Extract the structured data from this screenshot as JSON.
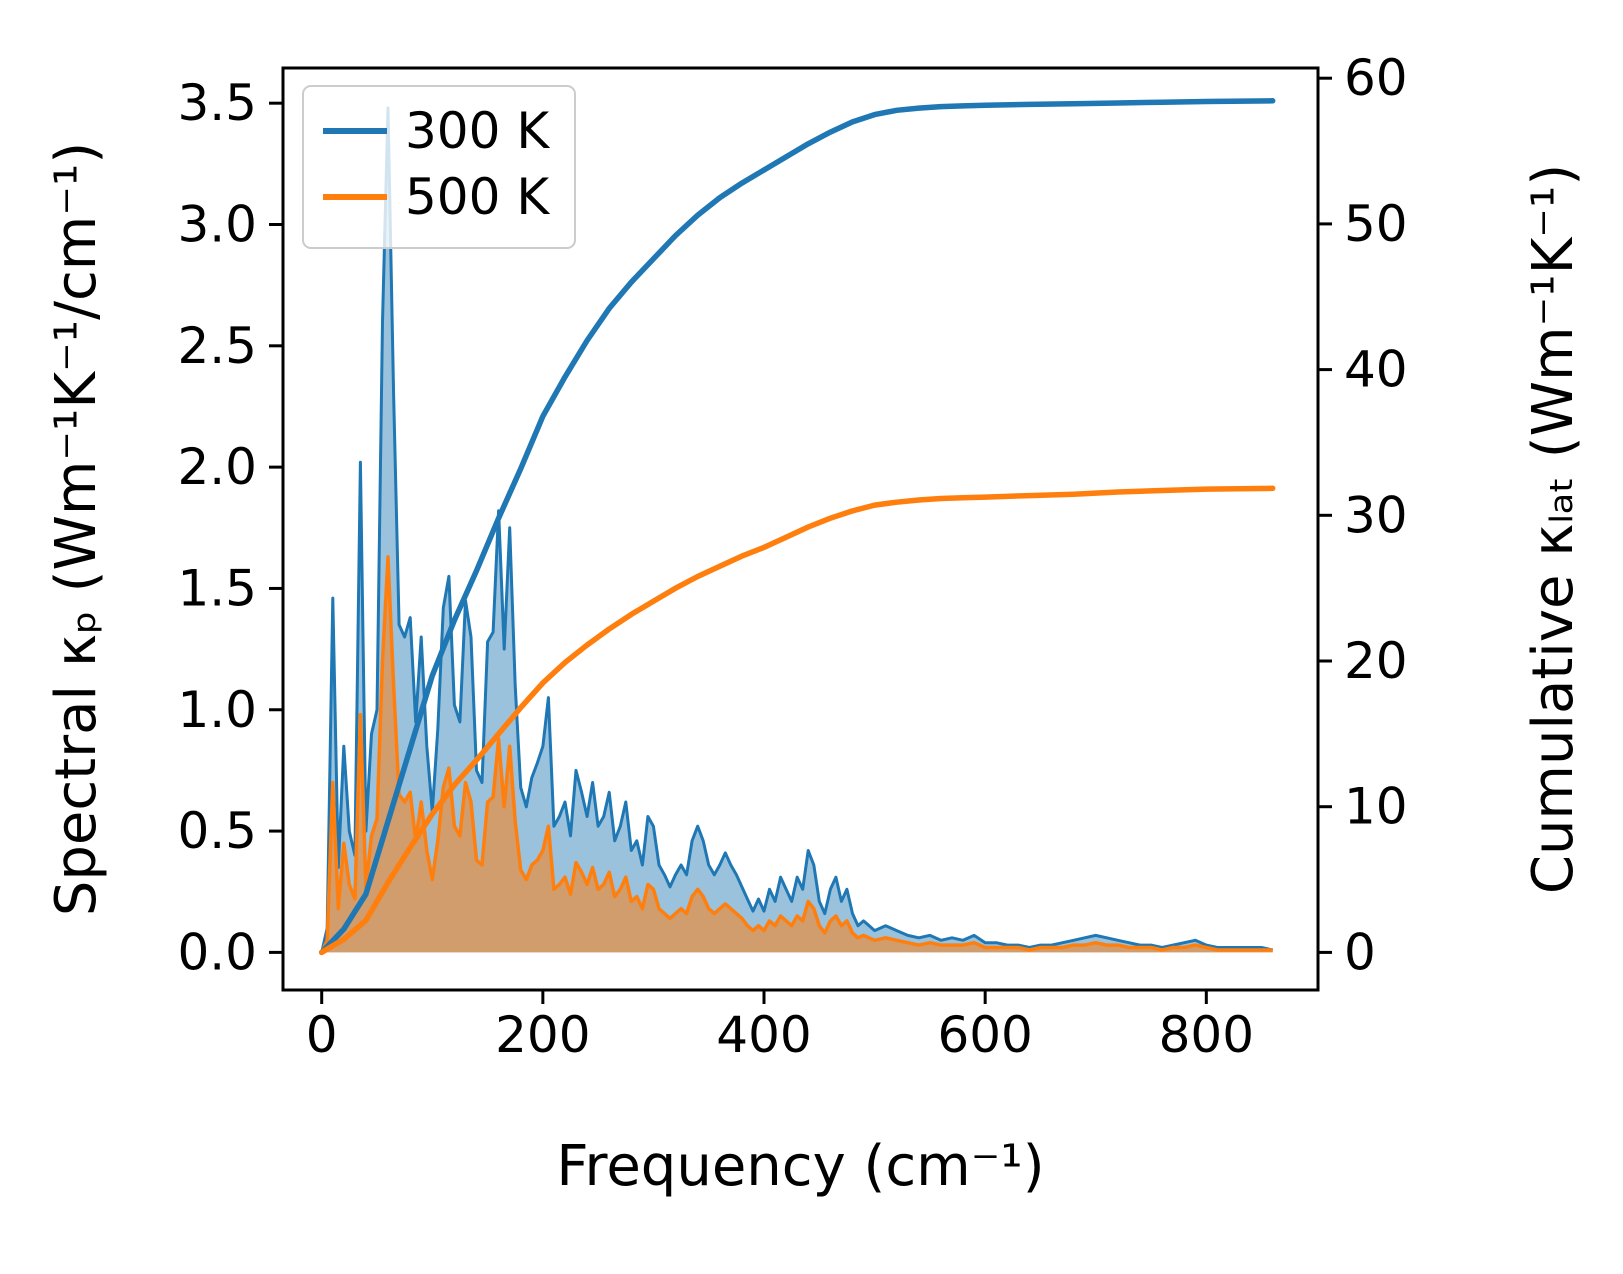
{
  "figure": {
    "background": "#ffffff"
  },
  "chart_data": {
    "type": "line",
    "title": "",
    "xlabel": "Frequency (cm⁻¹)",
    "ylabel_left": "Spectral κₚ (Wm⁻¹K⁻¹/cm⁻¹)",
    "ylabel_right": "Cumulative κₗₐₜ (Wm⁻¹K⁻¹)",
    "grid": false,
    "xlim": [
      -35,
      901
    ],
    "ylim_left": [
      -0.155,
      3.645
    ],
    "ylim_right": [
      -2.58,
      60.7
    ],
    "x_ticks": {
      "values": [
        0,
        200,
        400,
        600,
        800
      ],
      "labels": [
        "0",
        "200",
        "400",
        "600",
        "800"
      ]
    },
    "y_ticks_left": {
      "values": [
        0.0,
        0.5,
        1.0,
        1.5,
        2.0,
        2.5,
        3.0,
        3.5
      ],
      "labels": [
        "0.0",
        "0.5",
        "1.0",
        "1.5",
        "2.0",
        "2.5",
        "3.0",
        "3.5"
      ]
    },
    "y_ticks_right": {
      "values": [
        0,
        10,
        20,
        30,
        40,
        50,
        60
      ],
      "labels": [
        "0",
        "10",
        "20",
        "30",
        "40",
        "50",
        "60"
      ]
    },
    "colors": {
      "blue_300k": "#1f77b4",
      "orange_500k": "#ff7f0e"
    },
    "legend": {
      "position": "upper left",
      "entries": [
        {
          "label": "300 K",
          "color": "#1f77b4"
        },
        {
          "label": "500 K",
          "color": "#ff7f0e"
        }
      ]
    },
    "spectral": {
      "axis": "left",
      "x": [
        0,
        5,
        10,
        15,
        20,
        25,
        30,
        35,
        40,
        45,
        50,
        55,
        60,
        65,
        70,
        75,
        80,
        85,
        90,
        95,
        100,
        105,
        110,
        115,
        120,
        125,
        130,
        135,
        140,
        145,
        150,
        155,
        160,
        165,
        170,
        175,
        180,
        185,
        190,
        195,
        200,
        205,
        210,
        215,
        220,
        225,
        230,
        235,
        240,
        245,
        250,
        255,
        260,
        265,
        270,
        275,
        280,
        285,
        290,
        295,
        300,
        305,
        310,
        315,
        320,
        325,
        330,
        335,
        340,
        345,
        350,
        355,
        360,
        365,
        370,
        375,
        380,
        385,
        390,
        395,
        400,
        405,
        410,
        415,
        420,
        425,
        430,
        435,
        440,
        445,
        450,
        455,
        460,
        465,
        470,
        475,
        480,
        485,
        490,
        495,
        500,
        510,
        520,
        530,
        540,
        550,
        560,
        570,
        580,
        590,
        600,
        610,
        620,
        630,
        640,
        650,
        660,
        670,
        680,
        690,
        700,
        710,
        720,
        730,
        740,
        750,
        760,
        770,
        780,
        790,
        800,
        810,
        820,
        830,
        840,
        850,
        860
      ],
      "series": [
        {
          "name": "300 K",
          "color": "#1f77b4",
          "fill_opacity": 0.45,
          "values": [
            0.0,
            0.1,
            1.46,
            0.35,
            0.85,
            0.5,
            0.4,
            2.02,
            0.5,
            0.9,
            1.0,
            2.6,
            3.48,
            2.3,
            1.35,
            1.3,
            1.38,
            0.95,
            1.3,
            0.85,
            0.58,
            0.92,
            1.42,
            1.55,
            1.02,
            0.95,
            1.45,
            1.3,
            0.75,
            0.7,
            1.28,
            1.32,
            1.82,
            1.25,
            1.75,
            1.1,
            0.68,
            0.6,
            0.72,
            0.78,
            0.85,
            1.05,
            0.52,
            0.56,
            0.62,
            0.48,
            0.75,
            0.66,
            0.56,
            0.7,
            0.52,
            0.56,
            0.66,
            0.46,
            0.52,
            0.62,
            0.42,
            0.46,
            0.36,
            0.56,
            0.52,
            0.36,
            0.32,
            0.27,
            0.32,
            0.36,
            0.32,
            0.46,
            0.52,
            0.46,
            0.36,
            0.32,
            0.36,
            0.41,
            0.36,
            0.32,
            0.27,
            0.22,
            0.17,
            0.22,
            0.17,
            0.26,
            0.21,
            0.31,
            0.26,
            0.21,
            0.31,
            0.26,
            0.42,
            0.36,
            0.21,
            0.16,
            0.26,
            0.31,
            0.21,
            0.26,
            0.16,
            0.11,
            0.13,
            0.11,
            0.09,
            0.11,
            0.09,
            0.07,
            0.06,
            0.07,
            0.05,
            0.06,
            0.05,
            0.07,
            0.04,
            0.04,
            0.03,
            0.03,
            0.02,
            0.03,
            0.03,
            0.04,
            0.05,
            0.06,
            0.07,
            0.06,
            0.05,
            0.04,
            0.03,
            0.03,
            0.02,
            0.03,
            0.04,
            0.05,
            0.03,
            0.02,
            0.02,
            0.02,
            0.02,
            0.02,
            0.01
          ]
        },
        {
          "name": "500 K",
          "color": "#ff7f0e",
          "fill_opacity": 0.55,
          "values": [
            0.0,
            0.05,
            0.7,
            0.18,
            0.45,
            0.28,
            0.22,
            0.98,
            0.27,
            0.48,
            0.55,
            1.2,
            1.63,
            1.1,
            0.65,
            0.62,
            0.66,
            0.46,
            0.62,
            0.42,
            0.3,
            0.46,
            0.68,
            0.76,
            0.52,
            0.48,
            0.7,
            0.62,
            0.38,
            0.36,
            0.62,
            0.64,
            0.88,
            0.6,
            0.85,
            0.54,
            0.34,
            0.3,
            0.36,
            0.38,
            0.42,
            0.52,
            0.26,
            0.28,
            0.31,
            0.24,
            0.37,
            0.33,
            0.28,
            0.35,
            0.26,
            0.28,
            0.33,
            0.23,
            0.26,
            0.31,
            0.21,
            0.23,
            0.18,
            0.28,
            0.26,
            0.18,
            0.16,
            0.14,
            0.16,
            0.18,
            0.16,
            0.23,
            0.26,
            0.23,
            0.18,
            0.16,
            0.18,
            0.2,
            0.18,
            0.16,
            0.14,
            0.11,
            0.09,
            0.11,
            0.09,
            0.13,
            0.11,
            0.15,
            0.13,
            0.11,
            0.15,
            0.13,
            0.21,
            0.18,
            0.11,
            0.08,
            0.13,
            0.15,
            0.11,
            0.13,
            0.08,
            0.06,
            0.07,
            0.06,
            0.05,
            0.06,
            0.05,
            0.04,
            0.03,
            0.04,
            0.03,
            0.03,
            0.03,
            0.04,
            0.02,
            0.02,
            0.02,
            0.02,
            0.01,
            0.02,
            0.02,
            0.02,
            0.03,
            0.03,
            0.04,
            0.03,
            0.03,
            0.02,
            0.02,
            0.02,
            0.01,
            0.02,
            0.02,
            0.03,
            0.02,
            0.01,
            0.01,
            0.01,
            0.01,
            0.01,
            0.01
          ]
        }
      ]
    },
    "cumulative": {
      "axis": "right",
      "x": [
        0,
        20,
        40,
        60,
        80,
        100,
        120,
        140,
        160,
        180,
        200,
        220,
        240,
        260,
        280,
        300,
        320,
        340,
        360,
        380,
        400,
        420,
        440,
        460,
        480,
        500,
        520,
        540,
        560,
        580,
        600,
        640,
        680,
        720,
        760,
        800,
        860
      ],
      "series": [
        {
          "name": "300 K",
          "color": "#1f77b4",
          "final_value": 58.45,
          "values": [
            0,
            1.6,
            4.0,
            9.0,
            14.0,
            19.0,
            22.8,
            26.2,
            29.8,
            33.2,
            36.8,
            39.5,
            42.0,
            44.2,
            46.0,
            47.6,
            49.2,
            50.6,
            51.8,
            52.8,
            53.7,
            54.6,
            55.5,
            56.3,
            57.0,
            57.5,
            57.8,
            57.95,
            58.05,
            58.1,
            58.15,
            58.2,
            58.25,
            58.3,
            58.35,
            58.4,
            58.45
          ]
        },
        {
          "name": "500 K",
          "color": "#ff7f0e",
          "final_value": 31.85,
          "values": [
            0,
            0.9,
            2.2,
            4.8,
            7.2,
            9.5,
            11.5,
            13.2,
            15.0,
            16.8,
            18.5,
            19.9,
            21.1,
            22.2,
            23.2,
            24.1,
            25.0,
            25.8,
            26.5,
            27.2,
            27.8,
            28.5,
            29.2,
            29.8,
            30.3,
            30.7,
            30.9,
            31.05,
            31.15,
            31.2,
            31.25,
            31.35,
            31.45,
            31.6,
            31.7,
            31.8,
            31.85
          ]
        }
      ]
    }
  }
}
